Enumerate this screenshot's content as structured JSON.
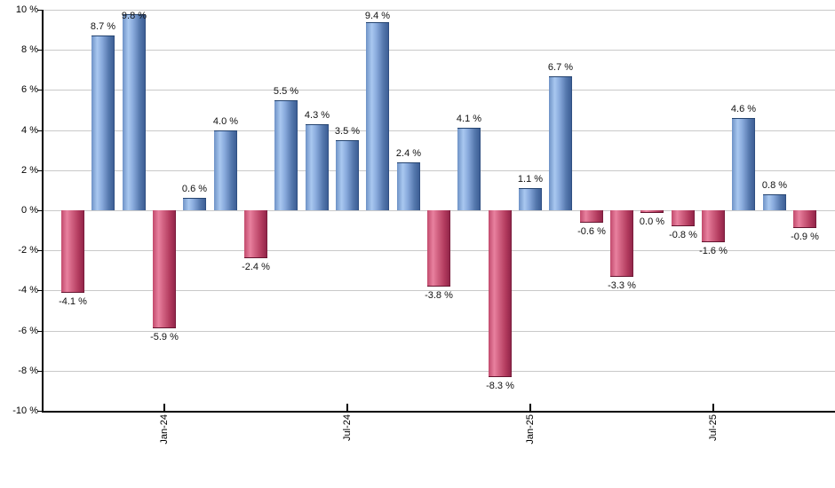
{
  "chart_data": {
    "type": "bar",
    "title": "",
    "xlabel": "",
    "ylabel": "",
    "ylim": [
      -10,
      10
    ],
    "grid": true,
    "legend": null,
    "yticks": [
      {
        "label": "10 %",
        "value": 10
      },
      {
        "label": "8 %",
        "value": 8
      },
      {
        "label": "6 %",
        "value": 6
      },
      {
        "label": "4 %",
        "value": 4
      },
      {
        "label": "2 %",
        "value": 2
      },
      {
        "label": "0 %",
        "value": 0
      },
      {
        "label": "-2 %",
        "value": -2
      },
      {
        "label": "-4 %",
        "value": -4
      },
      {
        "label": "-6 %",
        "value": -6
      },
      {
        "label": "-8 %",
        "value": -8
      },
      {
        "label": "-10 %",
        "value": -10
      }
    ],
    "x_tick_labels": [
      {
        "label": "Jan-24",
        "month_index": 3
      },
      {
        "label": "Jul-24",
        "month_index": 9
      },
      {
        "label": "Jan-25",
        "month_index": 15
      },
      {
        "label": "Jul-25",
        "month_index": 21
      }
    ],
    "bars": [
      {
        "label": "-4.1 %",
        "value": -4.1,
        "color": "negative"
      },
      {
        "label": "8.7 %",
        "value": 8.7,
        "color": "positive"
      },
      {
        "label": "9.8 %",
        "value": 9.8,
        "color": "positive"
      },
      {
        "label": "-5.9 %",
        "value": -5.9,
        "color": "negative"
      },
      {
        "label": "0.6 %",
        "value": 0.6,
        "color": "positive"
      },
      {
        "label": "4.0 %",
        "value": 4.0,
        "color": "positive"
      },
      {
        "label": "-2.4 %",
        "value": -2.4,
        "color": "negative"
      },
      {
        "label": "5.5 %",
        "value": 5.5,
        "color": "positive"
      },
      {
        "label": "4.3 %",
        "value": 4.3,
        "color": "positive"
      },
      {
        "label": "3.5 %",
        "value": 3.5,
        "color": "positive"
      },
      {
        "label": "9.4 %",
        "value": 9.4,
        "color": "positive"
      },
      {
        "label": "2.4 %",
        "value": 2.4,
        "color": "positive"
      },
      {
        "label": "-3.8 %",
        "value": -3.8,
        "color": "negative"
      },
      {
        "label": "4.1 %",
        "value": 4.1,
        "color": "positive"
      },
      {
        "label": "-8.3 %",
        "value": -8.3,
        "color": "negative"
      },
      {
        "label": "1.1 %",
        "value": 1.1,
        "color": "positive"
      },
      {
        "label": "6.7 %",
        "value": 6.7,
        "color": "positive"
      },
      {
        "label": "-0.6 %",
        "value": -0.6,
        "color": "negative"
      },
      {
        "label": "-3.3 %",
        "value": -3.3,
        "color": "negative"
      },
      {
        "label": "0.0 %",
        "value": 0.0,
        "color": "negative"
      },
      {
        "label": "-0.8 %",
        "value": -0.8,
        "color": "negative"
      },
      {
        "label": "-1.6 %",
        "value": -1.6,
        "color": "negative"
      },
      {
        "label": "4.6 %",
        "value": 4.6,
        "color": "positive"
      },
      {
        "label": "0.8 %",
        "value": 0.8,
        "color": "positive"
      },
      {
        "label": "-0.9 %",
        "value": -0.9,
        "color": "negative"
      }
    ],
    "colors": {
      "positive_light": "#a9c8f0",
      "positive_dark": "#3d5f96",
      "negative_light": "#e8819f",
      "negative_dark": "#93264a",
      "gridline": "#c9c9c9",
      "axis": "#000000",
      "label_text": "#111111"
    }
  }
}
